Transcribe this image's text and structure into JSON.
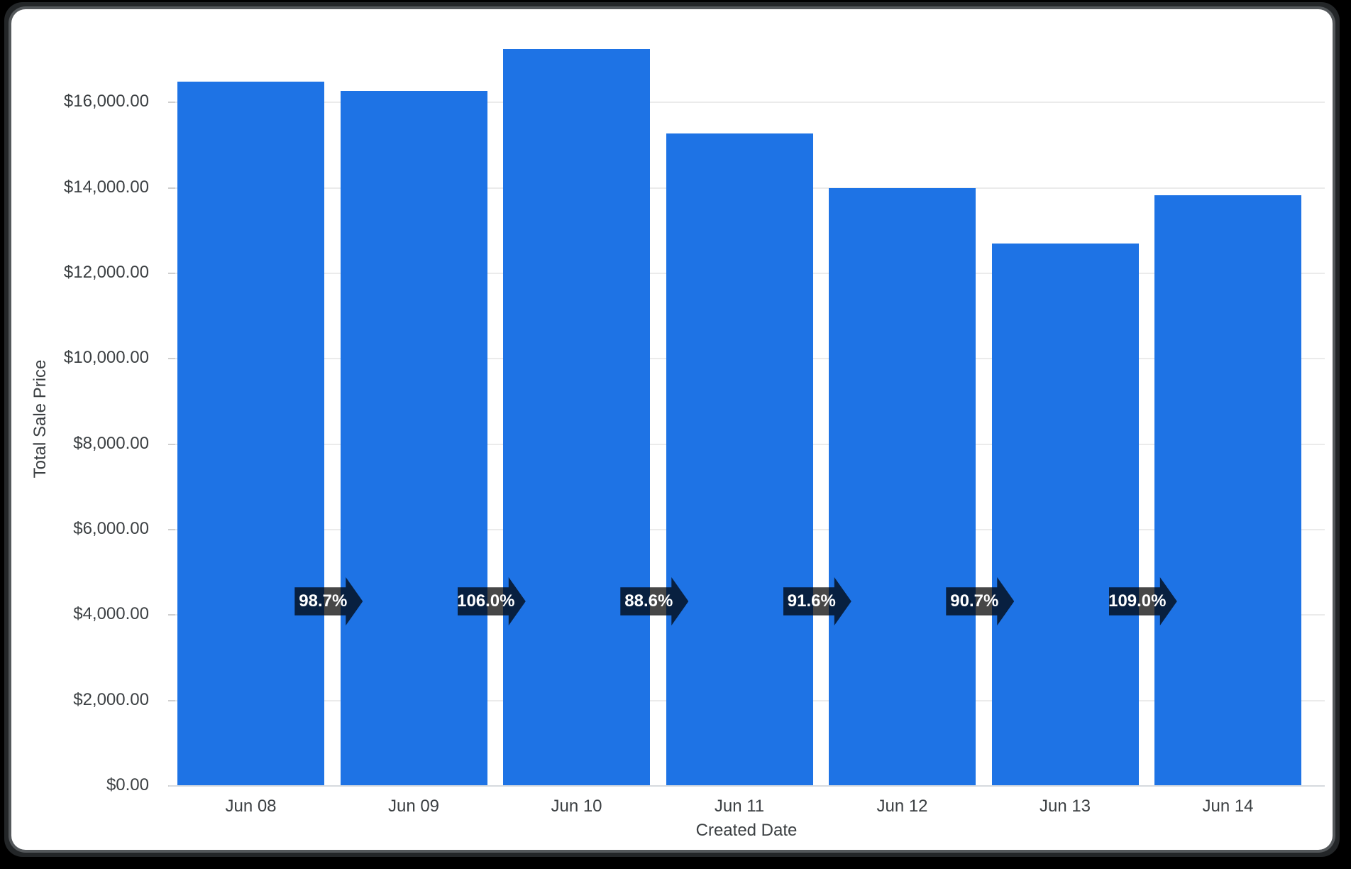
{
  "window": {
    "background_color": "#000000",
    "card_color": "#ffffff",
    "card_border_color": "#54585b"
  },
  "chart_data": {
    "type": "bar",
    "title": "",
    "xlabel": "Created Date",
    "ylabel": "Total Sale Price",
    "categories": [
      "Jun 08",
      "Jun 09",
      "Jun 10",
      "Jun 11",
      "Jun 12",
      "Jun 13",
      "Jun 14"
    ],
    "series": [
      {
        "name": "Total Sale Price",
        "values": [
          16500,
          16290,
          17260,
          15290,
          14010,
          12710,
          13850
        ]
      }
    ],
    "arrow_labels": [
      "98.7%",
      "106.0%",
      "88.6%",
      "91.6%",
      "90.7%",
      "109.0%"
    ],
    "y_ticks": [
      "$0.00",
      "$2,000.00",
      "$4,000.00",
      "$6,000.00",
      "$8,000.00",
      "$10,000.00",
      "$12,000.00",
      "$14,000.00",
      "$16,000.00"
    ],
    "y_tick_values": [
      0,
      2000,
      4000,
      6000,
      8000,
      10000,
      12000,
      14000,
      16000
    ],
    "ylim": [
      0,
      17400
    ],
    "grid": "horizontal",
    "legend": "none",
    "colors": {
      "bar": "#1e73e5",
      "arrow": "rgba(0,0,0,0.72)",
      "arrow_text": "#ffffff",
      "axis_text": "#3c4043",
      "gridline": "#ebebeb",
      "baseline": "#d6dade"
    }
  }
}
